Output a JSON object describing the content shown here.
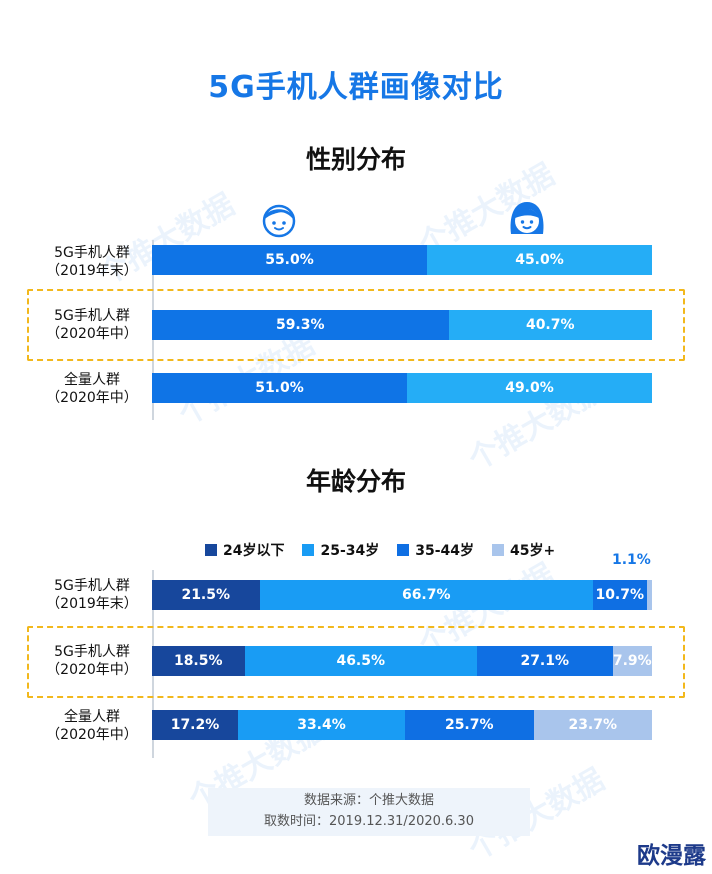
{
  "title": "5G手机人群画像对比",
  "watermark": "个推大数据",
  "logo": "欧漫露",
  "source": {
    "line1": "数据来源：个推大数据",
    "line2": "取数时间：2019.12.31/2020.6.30"
  },
  "colors": {
    "accent": "#1677e6",
    "highlight": "#f2b81c",
    "male": "#0f74e6",
    "female": "#25adf6",
    "age_24": "#17479c",
    "age_25_34": "#199cf4",
    "age_35_44": "#0f6fe3",
    "age_45": "#a9c5ec"
  },
  "icons": [
    "boy-face-icon",
    "girl-face-icon"
  ],
  "chart_data": [
    {
      "type": "bar",
      "stacked": true,
      "orientation": "horizontal",
      "title": "性别分布",
      "categories": [
        [
          "5G手机人群",
          "（2019年末）"
        ],
        [
          "5G手机人群",
          "（2020年中）"
        ],
        [
          "全量人群",
          "（2020年中）"
        ]
      ],
      "highlighted_category": 1,
      "series": [
        {
          "values": [
            55.0,
            59.3,
            51.0
          ],
          "labels": [
            "55.0%",
            "59.3%",
            "51.0%"
          ]
        },
        {
          "values": [
            45.0,
            40.7,
            49.0
          ],
          "labels": [
            "45.0%",
            "40.7%",
            "49.0%"
          ]
        }
      ],
      "xlim": [
        0,
        100
      ]
    },
    {
      "type": "bar",
      "stacked": true,
      "orientation": "horizontal",
      "title": "年龄分布",
      "categories": [
        [
          "5G手机人群",
          "（2019年末）"
        ],
        [
          "5G手机人群",
          "（2020年中）"
        ],
        [
          "全量人群",
          "（2020年中）"
        ]
      ],
      "highlighted_category": 1,
      "legend_position": "top",
      "series": [
        {
          "name": "24岁以下",
          "values": [
            21.5,
            18.5,
            17.2
          ],
          "labels": [
            "21.5%",
            "18.5%",
            "17.2%"
          ]
        },
        {
          "name": "25-34岁",
          "values": [
            66.7,
            46.5,
            33.4
          ],
          "labels": [
            "66.7%",
            "46.5%",
            "33.4%"
          ]
        },
        {
          "name": "35-44岁",
          "values": [
            10.7,
            27.1,
            25.7
          ],
          "labels": [
            "10.7%",
            "27.1%",
            "25.7%"
          ]
        },
        {
          "name": "45岁+",
          "values": [
            1.1,
            7.9,
            23.7
          ],
          "labels": [
            "1.1%",
            "7.9%",
            "23.7%"
          ]
        }
      ],
      "xlim": [
        0,
        100
      ]
    }
  ]
}
